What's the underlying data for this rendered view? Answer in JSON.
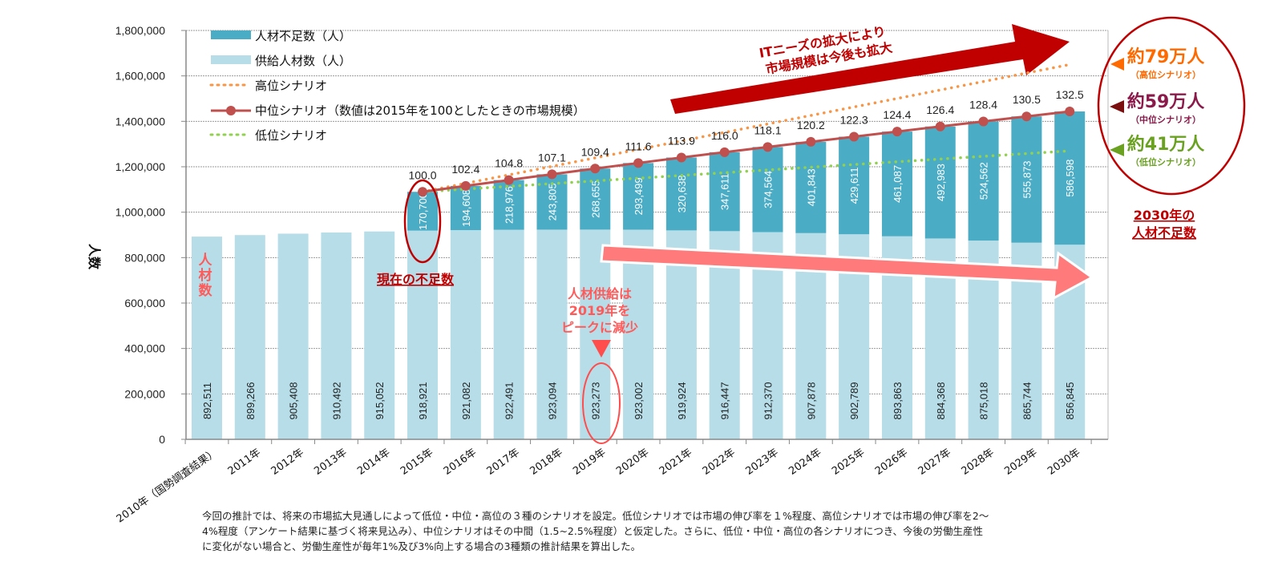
{
  "chart_data": {
    "type": "bar",
    "stacked": true,
    "ylabel": "人数",
    "ylim": [
      0,
      1800000
    ],
    "yticks": [
      0,
      200000,
      400000,
      600000,
      800000,
      1000000,
      1200000,
      1400000,
      1600000,
      1800000
    ],
    "ytick_labels": [
      "0",
      "200,000",
      "400,000",
      "600,000",
      "800,000",
      "1,000,000",
      "1,200,000",
      "1,400,000",
      "1,600,000",
      "1,800,000"
    ],
    "grid": true,
    "legend_position": "top-left",
    "categories": [
      "2010年（国勢調査結果）",
      "2011年",
      "2012年",
      "2013年",
      "2014年",
      "2015年",
      "2016年",
      "2017年",
      "2018年",
      "2019年",
      "2020年",
      "2021年",
      "2022年",
      "2023年",
      "2024年",
      "2025年",
      "2026年",
      "2027年",
      "2028年",
      "2029年",
      "2030年"
    ],
    "series": [
      {
        "name": "供給人材数（人）",
        "kind": "bar",
        "color": "#b6dde8",
        "values": [
          892511,
          899266,
          905408,
          910492,
          915052,
          918921,
          921082,
          922491,
          923094,
          923273,
          923002,
          919924,
          916447,
          912370,
          907878,
          902789,
          893863,
          884368,
          875018,
          865744,
          856845
        ],
        "labels": [
          "892,511",
          "899,266",
          "905,408",
          "910,492",
          "915,052",
          "918,921",
          "921,082",
          "922,491",
          "923,094",
          "923,273",
          "923,002",
          "919,924",
          "916,447",
          "912,370",
          "907,878",
          "902,789",
          "893,863",
          "884,368",
          "875,018",
          "865,744",
          "856,845"
        ]
      },
      {
        "name": "人材不足数（人）",
        "kind": "bar",
        "color": "#4bacc6",
        "values": [
          null,
          null,
          null,
          null,
          null,
          170700,
          194608,
          218976,
          243805,
          268655,
          293499,
          320638,
          347611,
          374564,
          401843,
          429611,
          461087,
          492983,
          524562,
          555873,
          586598
        ],
        "labels": [
          "",
          "",
          "",
          "",
          "",
          "170,700",
          "194,608",
          "218,976",
          "243,805",
          "268,655",
          "293,499",
          "320,638",
          "347,611",
          "374,564",
          "401,843",
          "429,611",
          "461,087",
          "492,983",
          "524,562",
          "555,873",
          "586,598"
        ]
      },
      {
        "name": "高位シナリオ",
        "kind": "dotted-line",
        "color": "#f79646",
        "start": {
          "category": "2015年",
          "value": 1089621
        },
        "end": {
          "category": "2030年",
          "value": 1650000
        }
      },
      {
        "name": "中位シナリオ（数値は2015年を100としたときの市場規模）",
        "kind": "line-marker",
        "color": "#c0504d",
        "market_index": [
          null,
          null,
          null,
          null,
          null,
          100.0,
          102.4,
          104.8,
          107.1,
          109.4,
          111.6,
          113.9,
          116.0,
          118.1,
          120.2,
          122.3,
          124.4,
          126.4,
          128.4,
          130.5,
          132.5
        ],
        "market_index_labels": [
          "",
          "",
          "",
          "",
          "",
          "100.0",
          "102.4",
          "104.8",
          "107.1",
          "109.4",
          "111.6",
          "113.9",
          "116.0",
          "118.1",
          "120.2",
          "122.3",
          "124.4",
          "126.4",
          "128.4",
          "130.5",
          "132.5"
        ]
      },
      {
        "name": "低位シナリオ",
        "kind": "dotted-line",
        "color": "#92d050",
        "start": {
          "category": "2015年",
          "value": 1089621
        },
        "end": {
          "category": "2030年",
          "value": 1270000
        }
      }
    ],
    "annotations": {
      "market_arrow": [
        "ITニーズの拡大により",
        "市場規模は今後も拡大"
      ],
      "current_shortage": "現在の不足数",
      "supply_peak": [
        "人材供給は",
        "2019年を",
        "ピークに減少"
      ],
      "supply_bar_label": [
        "人",
        "材",
        "数"
      ],
      "shortage_2030_caption": [
        "2030年の",
        "人材不足数"
      ],
      "scenario_results": [
        {
          "value": "約79万人",
          "scenario": "（高位シナリオ）",
          "color": "#ff6a00"
        },
        {
          "value": "約59万人",
          "scenario": "（中位シナリオ）",
          "color": "#8b1a4a"
        },
        {
          "value": "約41万人",
          "scenario": "（低位シナリオ）",
          "color": "#6aa121"
        }
      ]
    }
  },
  "footnote": [
    "今回の推計では、将来の市場拡大見通しによって低位・中位・高位の３種のシナリオを設定。低位シナリオでは市場の伸び率を１%程度、高位シナリオでは市場の伸び率を2～",
    "4%程度（アンケート結果に基づく将来見込み）、中位シナリオはその中間（1.5~2.5%程度）と仮定した。さらに、低位・中位・高位の各シナリオにつき、今後の労働生産性",
    "に変化がない場合と、労働生産性が毎年1%及び3%向上する場合の3種類の推計結果を算出した。"
  ]
}
